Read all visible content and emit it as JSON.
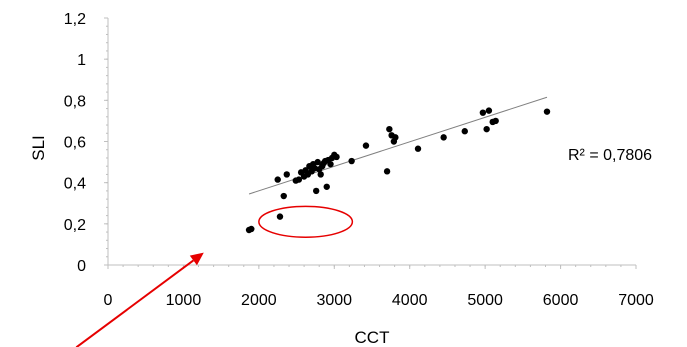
{
  "chart_data": {
    "type": "scatter",
    "title": "",
    "xlabel": "CCT",
    "ylabel": "SLI",
    "xlim": [
      0,
      7000
    ],
    "ylim": [
      0,
      1.2
    ],
    "x_ticks": [
      "0",
      "1000",
      "2000",
      "3000",
      "4000",
      "5000",
      "6000",
      "7000"
    ],
    "y_ticks": [
      "0",
      "0,2",
      "0,4",
      "0,6",
      "0,8",
      "1",
      "1,2"
    ],
    "grid": false,
    "legend": "none",
    "series": [
      {
        "marker_color": "#000000",
        "points": [
          {
            "x": 1870,
            "y": 0.17
          },
          {
            "x": 1900,
            "y": 0.175
          },
          {
            "x": 2280,
            "y": 0.235
          },
          {
            "x": 2330,
            "y": 0.335
          },
          {
            "x": 2250,
            "y": 0.415
          },
          {
            "x": 2370,
            "y": 0.44
          },
          {
            "x": 2490,
            "y": 0.41
          },
          {
            "x": 2530,
            "y": 0.415
          },
          {
            "x": 2560,
            "y": 0.45
          },
          {
            "x": 2600,
            "y": 0.43
          },
          {
            "x": 2620,
            "y": 0.46
          },
          {
            "x": 2650,
            "y": 0.44
          },
          {
            "x": 2670,
            "y": 0.48
          },
          {
            "x": 2700,
            "y": 0.455
          },
          {
            "x": 2720,
            "y": 0.49
          },
          {
            "x": 2740,
            "y": 0.47
          },
          {
            "x": 2760,
            "y": 0.36
          },
          {
            "x": 2780,
            "y": 0.5
          },
          {
            "x": 2800,
            "y": 0.465
          },
          {
            "x": 2820,
            "y": 0.44
          },
          {
            "x": 2840,
            "y": 0.48
          },
          {
            "x": 2860,
            "y": 0.495
          },
          {
            "x": 2880,
            "y": 0.505
          },
          {
            "x": 2900,
            "y": 0.38
          },
          {
            "x": 2920,
            "y": 0.51
          },
          {
            "x": 2950,
            "y": 0.49
          },
          {
            "x": 2970,
            "y": 0.52
          },
          {
            "x": 3000,
            "y": 0.535
          },
          {
            "x": 3030,
            "y": 0.525
          },
          {
            "x": 3230,
            "y": 0.505
          },
          {
            "x": 3420,
            "y": 0.58
          },
          {
            "x": 3700,
            "y": 0.455
          },
          {
            "x": 3730,
            "y": 0.66
          },
          {
            "x": 3760,
            "y": 0.63
          },
          {
            "x": 3790,
            "y": 0.6
          },
          {
            "x": 3810,
            "y": 0.62
          },
          {
            "x": 4110,
            "y": 0.565
          },
          {
            "x": 4450,
            "y": 0.62
          },
          {
            "x": 4730,
            "y": 0.65
          },
          {
            "x": 4970,
            "y": 0.74
          },
          {
            "x": 5050,
            "y": 0.75
          },
          {
            "x": 5020,
            "y": 0.66
          },
          {
            "x": 5100,
            "y": 0.695
          },
          {
            "x": 5140,
            "y": 0.7
          },
          {
            "x": 5820,
            "y": 0.745
          }
        ]
      }
    ],
    "trendline": {
      "type": "linear",
      "from": [
        1870,
        0.345
      ],
      "to": [
        5820,
        0.815
      ],
      "color": "#808080"
    },
    "annotations": {
      "r_squared": "R² = 0,7806",
      "highlight_ellipse": {
        "center": [
          2620,
          0.21
        ],
        "rx": 620,
        "ry": 0.075,
        "color": "#e60000"
      },
      "arrow": {
        "from": [
          -420,
          -0.4
        ],
        "to": [
          1270,
          0.06
        ],
        "color": "#e60000"
      }
    }
  }
}
